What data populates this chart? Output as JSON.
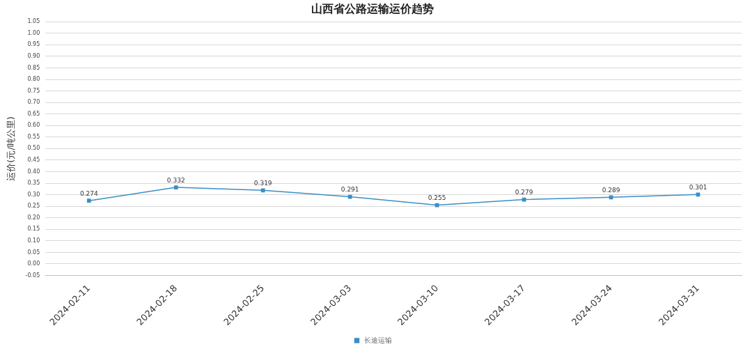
{
  "chart_data": {
    "type": "line",
    "title": "山西省公路运输运价趋势",
    "ylabel": "运价(元/吨公里)",
    "categories": [
      "2024-02-11",
      "2024-02-18",
      "2024-02-25",
      "2024-03-03",
      "2024-03-10",
      "2024-03-17",
      "2024-03-24",
      "2024-03-31"
    ],
    "series": [
      {
        "name": "长途运输",
        "color": "#3a8fc4",
        "values": [
          0.274,
          0.332,
          0.319,
          0.291,
          0.255,
          0.279,
          0.289,
          0.301
        ]
      }
    ],
    "ylim": [
      -0.05,
      1.05
    ],
    "yticks": [
      {
        "value": -0.05,
        "label": "-0.05"
      },
      {
        "value": 0,
        "label": "0.00"
      },
      {
        "value": 0.05,
        "label": "0.05"
      },
      {
        "value": 0.1,
        "label": "0.10"
      },
      {
        "value": 0.15,
        "label": "0.15"
      },
      {
        "value": 0.2,
        "label": "0.20"
      },
      {
        "value": 0.25,
        "label": "0.25"
      },
      {
        "value": 0.3,
        "label": "0.30"
      },
      {
        "value": 0.35,
        "label": "0.35"
      },
      {
        "value": 0.4,
        "label": "0.40"
      },
      {
        "value": 0.45,
        "label": "0.45"
      },
      {
        "value": 0.5,
        "label": "0.50"
      },
      {
        "value": 0.55,
        "label": "0.55"
      },
      {
        "value": 0.6,
        "label": "0.60"
      },
      {
        "value": 0.65,
        "label": "0.65"
      },
      {
        "value": 0.7,
        "label": "0.70"
      },
      {
        "value": 0.75,
        "label": "0.75"
      },
      {
        "value": 0.8,
        "label": "0.80"
      },
      {
        "value": 0.85,
        "label": "0.85"
      },
      {
        "value": 0.9,
        "label": "0.90"
      },
      {
        "value": 0.95,
        "label": "0.95"
      },
      {
        "value": 1.0,
        "label": "1.00"
      },
      {
        "value": 1.05,
        "label": "1.05"
      }
    ],
    "grid": "y",
    "legend": "bottom",
    "marker": "square",
    "line_style": "solid",
    "data_labels": true
  }
}
